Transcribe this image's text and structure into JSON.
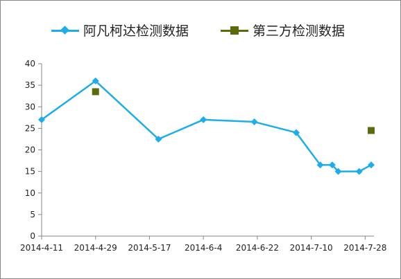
{
  "chart_data": {
    "type": "line",
    "title": "",
    "xlabel": "",
    "ylabel": "",
    "ylim": [
      0,
      40
    ],
    "yticks": [
      0,
      5,
      10,
      15,
      20,
      25,
      30,
      35,
      40
    ],
    "xlim": [
      "2014-4-11",
      "2014-7-30"
    ],
    "xticks": [
      "2014-4-11",
      "2014-4-29",
      "2014-5-17",
      "2014-6-4",
      "2014-6-22",
      "2014-7-10",
      "2014-7-28"
    ],
    "grid": false,
    "legend_position": "top",
    "series": [
      {
        "name": "阿凡柯达检测数据",
        "color": "#1EADE9",
        "marker": "diamond",
        "line": true,
        "points": [
          {
            "x": "2014-4-11",
            "y": 27
          },
          {
            "x": "2014-4-29",
            "y": 36
          },
          {
            "x": "2014-5-20",
            "y": 22.5
          },
          {
            "x": "2014-6-4",
            "y": 27
          },
          {
            "x": "2014-6-21",
            "y": 26.5
          },
          {
            "x": "2014-7-5",
            "y": 24
          },
          {
            "x": "2014-7-13",
            "y": 16.5
          },
          {
            "x": "2014-7-17",
            "y": 16.5
          },
          {
            "x": "2014-7-19",
            "y": 15
          },
          {
            "x": "2014-7-26",
            "y": 15
          },
          {
            "x": "2014-7-30",
            "y": 16.5
          }
        ]
      },
      {
        "name": "第三方检测数据",
        "color": "#5C6B0A",
        "marker": "square",
        "line": false,
        "points": [
          {
            "x": "2014-4-29",
            "y": 33.5
          },
          {
            "x": "2014-7-30",
            "y": 24.5
          }
        ]
      }
    ]
  }
}
